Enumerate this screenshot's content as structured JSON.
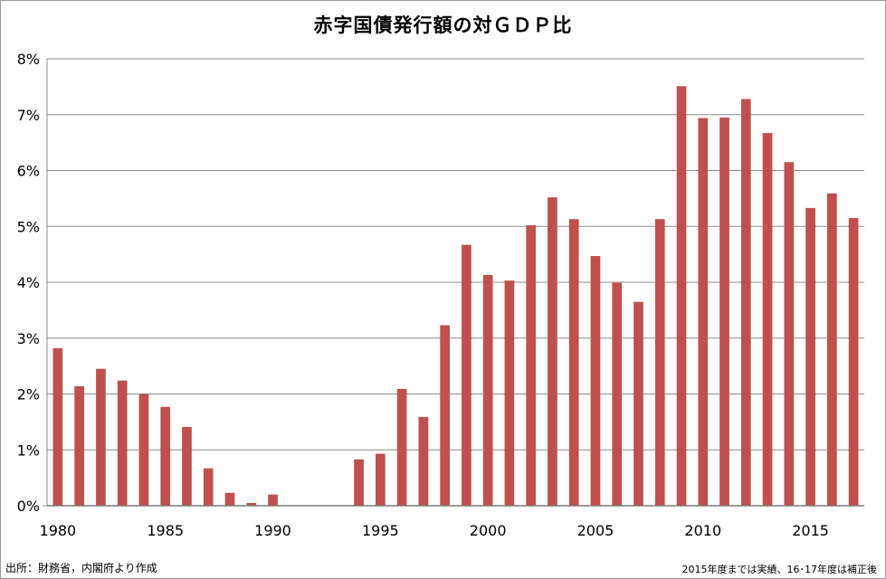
{
  "chart_data": {
    "type": "bar",
    "title": "赤字国債発行額の対ＧＤＰ比",
    "x": [
      1980,
      1981,
      1982,
      1983,
      1984,
      1985,
      1986,
      1987,
      1988,
      1989,
      1990,
      1991,
      1992,
      1993,
      1994,
      1995,
      1996,
      1997,
      1998,
      1999,
      2000,
      2001,
      2002,
      2003,
      2004,
      2005,
      2006,
      2007,
      2008,
      2009,
      2010,
      2011,
      2012,
      2013,
      2014,
      2015,
      2016,
      2017
    ],
    "values": [
      2.82,
      2.14,
      2.45,
      2.24,
      2.0,
      1.77,
      1.41,
      0.67,
      0.23,
      0.05,
      0.2,
      0,
      0,
      0,
      0.83,
      0.93,
      2.09,
      1.59,
      3.23,
      4.67,
      4.13,
      4.03,
      5.02,
      5.52,
      5.13,
      4.47,
      3.99,
      3.65,
      5.13,
      7.51,
      6.94,
      6.95,
      7.28,
      6.67,
      6.15,
      5.33,
      5.59,
      5.15
    ],
    "x_tick_labels": [
      "1980",
      "1985",
      "1990",
      "1995",
      "2000",
      "2005",
      "2010",
      "2015"
    ],
    "y_tick_labels": [
      "0%",
      "1%",
      "2%",
      "3%",
      "4%",
      "5%",
      "6%",
      "7%",
      "8%"
    ],
    "ylim": [
      0,
      8
    ],
    "xlabel": "",
    "ylabel": "",
    "grid": "horizontal",
    "bar_color": "#c0504d",
    "source_note": "出所：財務省，内閣府より作成",
    "footnote": "2015年度までは実績、16･17年度は補正後"
  }
}
